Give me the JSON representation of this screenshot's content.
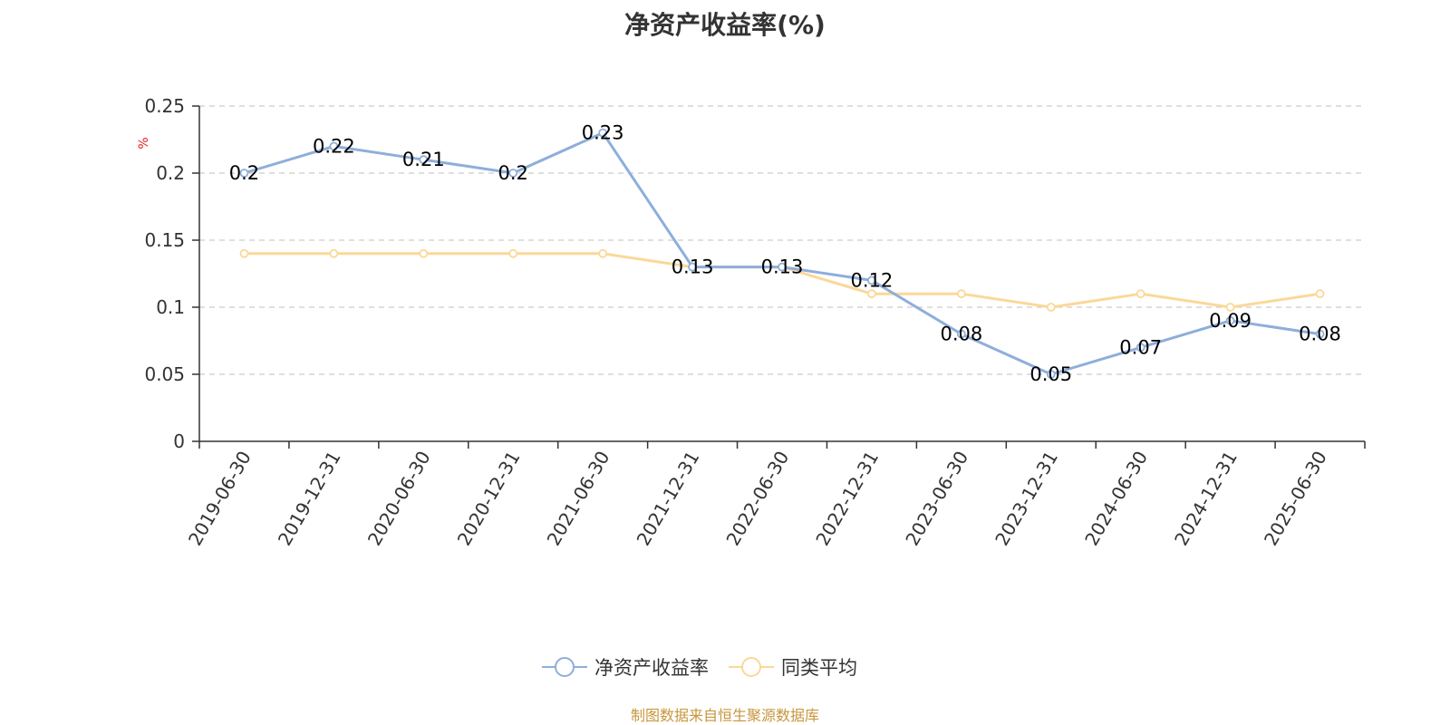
{
  "chart_data": {
    "type": "line",
    "title": "净资产收益率(%)",
    "ylabel": "%",
    "categories": [
      "2019-06-30",
      "2019-12-31",
      "2020-06-30",
      "2020-12-31",
      "2021-06-30",
      "2021-12-31",
      "2022-06-30",
      "2022-12-31",
      "2023-06-30",
      "2023-12-31",
      "2024-06-30",
      "2024-12-31",
      "2025-06-30"
    ],
    "ylim": [
      0,
      0.25
    ],
    "yticks": [
      "0",
      "0.05",
      "0.1",
      "0.15",
      "0.2",
      "0.25"
    ],
    "grid": true,
    "legend_position": "bottom",
    "series": [
      {
        "name": "净资产收益率",
        "color": "#8eaedb",
        "show_labels": true,
        "values": [
          0.2,
          0.22,
          0.21,
          0.2,
          0.23,
          0.13,
          0.13,
          0.12,
          0.08,
          0.05,
          0.07,
          0.09,
          0.08
        ]
      },
      {
        "name": "同类平均",
        "color": "#fbd898",
        "show_labels": false,
        "values": [
          0.14,
          0.14,
          0.14,
          0.14,
          0.14,
          0.13,
          0.13,
          0.11,
          0.11,
          0.1,
          0.11,
          0.1,
          0.11
        ]
      }
    ]
  },
  "source_note": "制图数据来自恒生聚源数据库"
}
